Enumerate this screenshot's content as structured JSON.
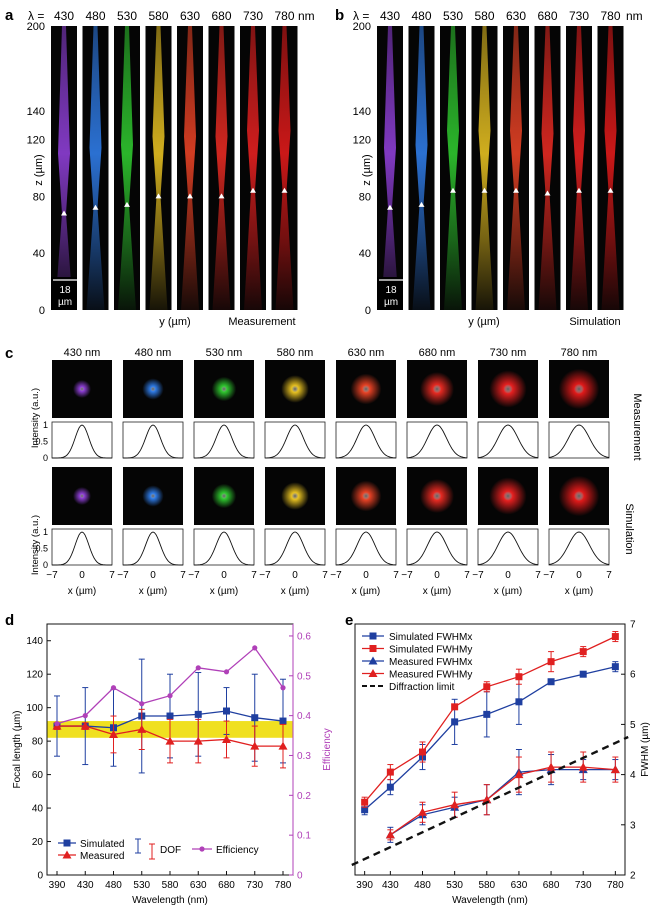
{
  "panels": {
    "a": {
      "letter": "a",
      "lambda_label": "λ =",
      "unit": "nm",
      "wavelengths": [
        "430",
        "480",
        "530",
        "580",
        "630",
        "680",
        "730",
        "780"
      ],
      "zlabel": "z (µm)",
      "zticks": [
        "200",
        "140",
        "120",
        "80",
        "40",
        "0"
      ],
      "ylabel": "y (µm)",
      "mode": "Measurement",
      "scalebar": [
        "18",
        "µm"
      ],
      "focus": [
        0.66,
        0.64,
        0.63,
        0.6,
        0.6,
        0.6,
        0.58,
        0.58
      ]
    },
    "b": {
      "letter": "b",
      "lambda_label": "λ =",
      "unit": "nm",
      "wavelengths": [
        "430",
        "480",
        "530",
        "580",
        "630",
        "680",
        "730",
        "780"
      ],
      "zlabel": "z (µm)",
      "zticks": [
        "200",
        "140",
        "120",
        "80",
        "40",
        "0"
      ],
      "ylabel": "y (µm)",
      "mode": "Simulation",
      "scalebar": [
        "18",
        "µm"
      ],
      "focus": [
        0.64,
        0.63,
        0.58,
        0.58,
        0.58,
        0.59,
        0.58,
        0.58
      ]
    },
    "c": {
      "letter": "c",
      "wavelengths": [
        "430 nm",
        "480 nm",
        "530 nm",
        "580 nm",
        "630 nm",
        "680 nm",
        "730 nm",
        "780 nm"
      ],
      "row1": "Measurement",
      "row2": "Simulation",
      "intensity_label": "Intensity (a.u.)",
      "yticks": [
        "1",
        "0.5",
        "0"
      ],
      "xticks": [
        "−7",
        "0",
        "7"
      ],
      "xlabel": "x (µm)"
    },
    "d": {
      "letter": "d"
    },
    "e": {
      "letter": "e"
    }
  },
  "colors": [
    "#8e3fd6",
    "#2f7ce8",
    "#2fc82f",
    "#e6c021",
    "#e84225",
    "#e62a22",
    "#e62020",
    "#e01a1a"
  ],
  "chart_data": [
    {
      "type": "line",
      "x": [
        390,
        430,
        480,
        530,
        580,
        630,
        680,
        730,
        780
      ],
      "xticks": [
        "390",
        "430",
        "480",
        "530",
        "580",
        "630",
        "680",
        "730",
        "780"
      ],
      "xlabel": "Wavelength (nm)",
      "ylabel": "Focal length (µm)",
      "ylim": [
        0,
        150
      ],
      "yticks": [
        "0",
        "20",
        "40",
        "60",
        "80",
        "100",
        "120",
        "140"
      ],
      "y2label": "Efficiency",
      "y2lim": [
        0,
        0.63
      ],
      "y2ticks": [
        "0",
        "0.1",
        "0.2",
        "0.3",
        "0.4",
        "0.5",
        "0.6"
      ],
      "series": [
        {
          "name": "Simulated",
          "color": "#1f3fa0",
          "marker": "square",
          "x": [
            390,
            430,
            480,
            530,
            580,
            630,
            680,
            730,
            780
          ],
          "values": [
            89,
            89,
            88,
            95,
            95,
            96,
            98,
            94,
            92
          ],
          "err": [
            18,
            23,
            23,
            34,
            25,
            25,
            14,
            26,
            25
          ]
        },
        {
          "name": "Measured",
          "color": "#e02020",
          "marker": "triangle",
          "x": [
            390,
            430,
            480,
            530,
            580,
            630,
            680,
            730,
            780
          ],
          "values": [
            89,
            89,
            84,
            87,
            80,
            80,
            81,
            77,
            77
          ],
          "err": [
            2,
            2,
            11,
            12,
            13,
            13,
            11,
            12,
            13
          ]
        },
        {
          "name": "Efficiency",
          "color": "#b040b8",
          "marker": "circle",
          "axis": "y2",
          "x": [
            390,
            430,
            480,
            530,
            580,
            630,
            680,
            730,
            780
          ],
          "values": [
            0.38,
            0.4,
            0.47,
            0.43,
            0.45,
            0.52,
            0.51,
            0.57,
            0.47
          ]
        }
      ],
      "band": {
        "from": 82,
        "to": 92,
        "color": "#f0e020"
      },
      "legend": {
        "simulated": "Simulated",
        "measured": "Measured",
        "dof": "DOF",
        "efficiency": "Efficiency"
      }
    },
    {
      "type": "line",
      "x": [
        390,
        430,
        480,
        530,
        580,
        630,
        680,
        730,
        780
      ],
      "xticks": [
        "390",
        "430",
        "480",
        "530",
        "580",
        "630",
        "680",
        "730",
        "780"
      ],
      "xlabel": "Wavelength (nm)",
      "ylabel": "FWHM (µm)",
      "ylim": [
        2,
        7
      ],
      "yticks": [
        "2",
        "3",
        "4",
        "5",
        "6",
        "7"
      ],
      "series": [
        {
          "name": "Simulated FWHMx",
          "color": "#1f3fa0",
          "marker": "square",
          "x": [
            390,
            430,
            480,
            530,
            580,
            630,
            680,
            730,
            780
          ],
          "values": [
            3.3,
            3.75,
            4.35,
            5.05,
            5.2,
            5.45,
            5.85,
            6.0,
            6.15
          ],
          "err": [
            0.1,
            0.15,
            0.25,
            0.45,
            0.45,
            0.45,
            0.05,
            0.05,
            0.1
          ]
        },
        {
          "name": "Simulated FWHMy",
          "color": "#e02020",
          "marker": "square",
          "x": [
            390,
            430,
            480,
            530,
            580,
            630,
            680,
            730,
            780
          ],
          "values": [
            3.45,
            4.05,
            4.45,
            5.35,
            5.75,
            5.95,
            6.25,
            6.45,
            6.75
          ],
          "err": [
            0.1,
            0.15,
            0.2,
            0.05,
            0.1,
            0.15,
            0.2,
            0.1,
            0.1
          ]
        },
        {
          "name": "Measured FWHMx",
          "color": "#1f3fa0",
          "marker": "triangle",
          "x": [
            430,
            480,
            530,
            580,
            630,
            680,
            730,
            780
          ],
          "values": [
            2.8,
            3.2,
            3.35,
            3.5,
            4.05,
            4.1,
            4.1,
            4.1
          ],
          "err": [
            0.15,
            0.2,
            0.2,
            0.3,
            0.45,
            0.3,
            0.2,
            0.2
          ]
        },
        {
          "name": "Measured FWHMy",
          "color": "#e02020",
          "marker": "triangle",
          "x": [
            430,
            480,
            530,
            580,
            630,
            680,
            730,
            780
          ],
          "values": [
            2.8,
            3.25,
            3.4,
            3.5,
            4.0,
            4.15,
            4.15,
            4.1
          ],
          "err": [
            0.1,
            0.2,
            0.25,
            0.3,
            0.35,
            0.3,
            0.3,
            0.25
          ]
        },
        {
          "name": "Diffraction limit",
          "color": "#111111",
          "dashed": true,
          "x": [
            370,
            800
          ],
          "values": [
            2.2,
            4.75
          ]
        }
      ]
    }
  ]
}
